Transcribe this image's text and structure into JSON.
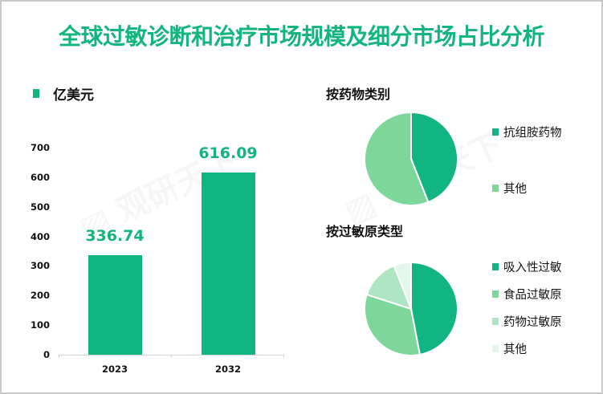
{
  "title": "全球过敏诊断和治疗市场规模及细分市场占比分析",
  "colors": {
    "primary": "#10b581",
    "medium": "#7dd69a",
    "light": "#aee5c2",
    "lightest": "#e3f6ea",
    "title": "#12b57f"
  },
  "bar_chart": {
    "legend_label": "亿美元",
    "y_ticks": [
      "700",
      "600",
      "500",
      "400",
      "300",
      "200",
      "100",
      "0"
    ],
    "bars": [
      {
        "category": "2023",
        "value": 336.74,
        "label": "336.74"
      },
      {
        "category": "2032",
        "value": 616.09,
        "label": "616.09"
      }
    ]
  },
  "pie_drug": {
    "title": "按药物类别",
    "legend": [
      "抗组胺药物",
      "其他"
    ]
  },
  "pie_allergen": {
    "title": "按过敏原类型",
    "legend": [
      "吸入性过敏",
      "食品过敏原",
      "药物过敏原",
      "其他"
    ]
  },
  "chart_data": [
    {
      "type": "bar",
      "title": "全球过敏诊断和治疗市场规模",
      "categories": [
        "2023",
        "2032"
      ],
      "values": [
        336.74,
        616.09
      ],
      "xlabel": "",
      "ylabel": "亿美元",
      "ylim": [
        0,
        700
      ],
      "yticks": [
        0,
        100,
        200,
        300,
        400,
        500,
        600,
        700
      ],
      "legend": [
        "亿美元"
      ],
      "legend_position": "top-left",
      "grid": false
    },
    {
      "type": "pie",
      "title": "按药物类别",
      "categories": [
        "抗组胺药物",
        "其他"
      ],
      "values": [
        44,
        56
      ],
      "legend_position": "right"
    },
    {
      "type": "pie",
      "title": "按过敏原类型",
      "categories": [
        "吸入性过敏",
        "食品过敏原",
        "药物过敏原",
        "其他"
      ],
      "values": [
        47,
        33,
        14,
        6
      ],
      "legend_position": "right"
    }
  ]
}
